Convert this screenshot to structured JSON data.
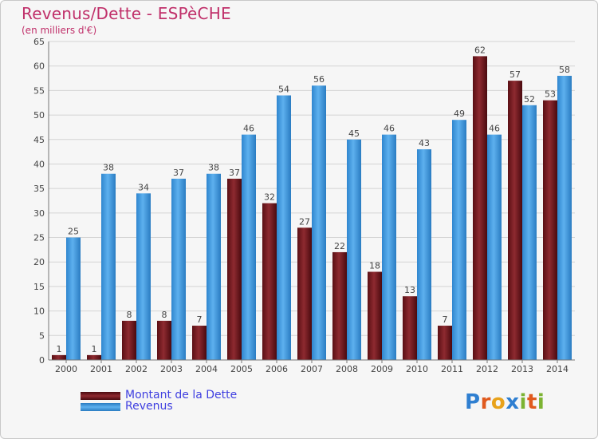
{
  "chart_data": {
    "type": "bar",
    "title": "Revenus/Dette - ESPèCHE",
    "subtitle": "(en milliers d'€)",
    "categories": [
      "2000",
      "2001",
      "2002",
      "2003",
      "2004",
      "2005",
      "2006",
      "2007",
      "2008",
      "2009",
      "2010",
      "2011",
      "2012",
      "2013",
      "2014"
    ],
    "series": [
      {
        "name": "Montant de la Dette",
        "color": "#7a1c22",
        "values": [
          1,
          1,
          8,
          8,
          7,
          37,
          32,
          27,
          22,
          18,
          13,
          7,
          62,
          57,
          53
        ]
      },
      {
        "name": "Revenus",
        "color": "#4da3e6",
        "values": [
          25,
          38,
          34,
          37,
          38,
          46,
          54,
          56,
          45,
          46,
          43,
          49,
          46,
          52,
          58
        ]
      }
    ],
    "ylim": [
      0,
      65
    ],
    "yticks": [
      0,
      5,
      10,
      15,
      20,
      25,
      30,
      35,
      40,
      45,
      50,
      55,
      60,
      65
    ],
    "grid": true,
    "legend_position": "bottom-left"
  },
  "logo": {
    "text": "Proxiti",
    "letters": [
      "P",
      "r",
      "o",
      "x",
      "i",
      "t",
      "i"
    ],
    "colors": [
      "#2f7fd1",
      "#e05a1e",
      "#e8a21b",
      "#2f7fd1",
      "#7cb332",
      "#e05a1e",
      "#7cb332"
    ]
  }
}
